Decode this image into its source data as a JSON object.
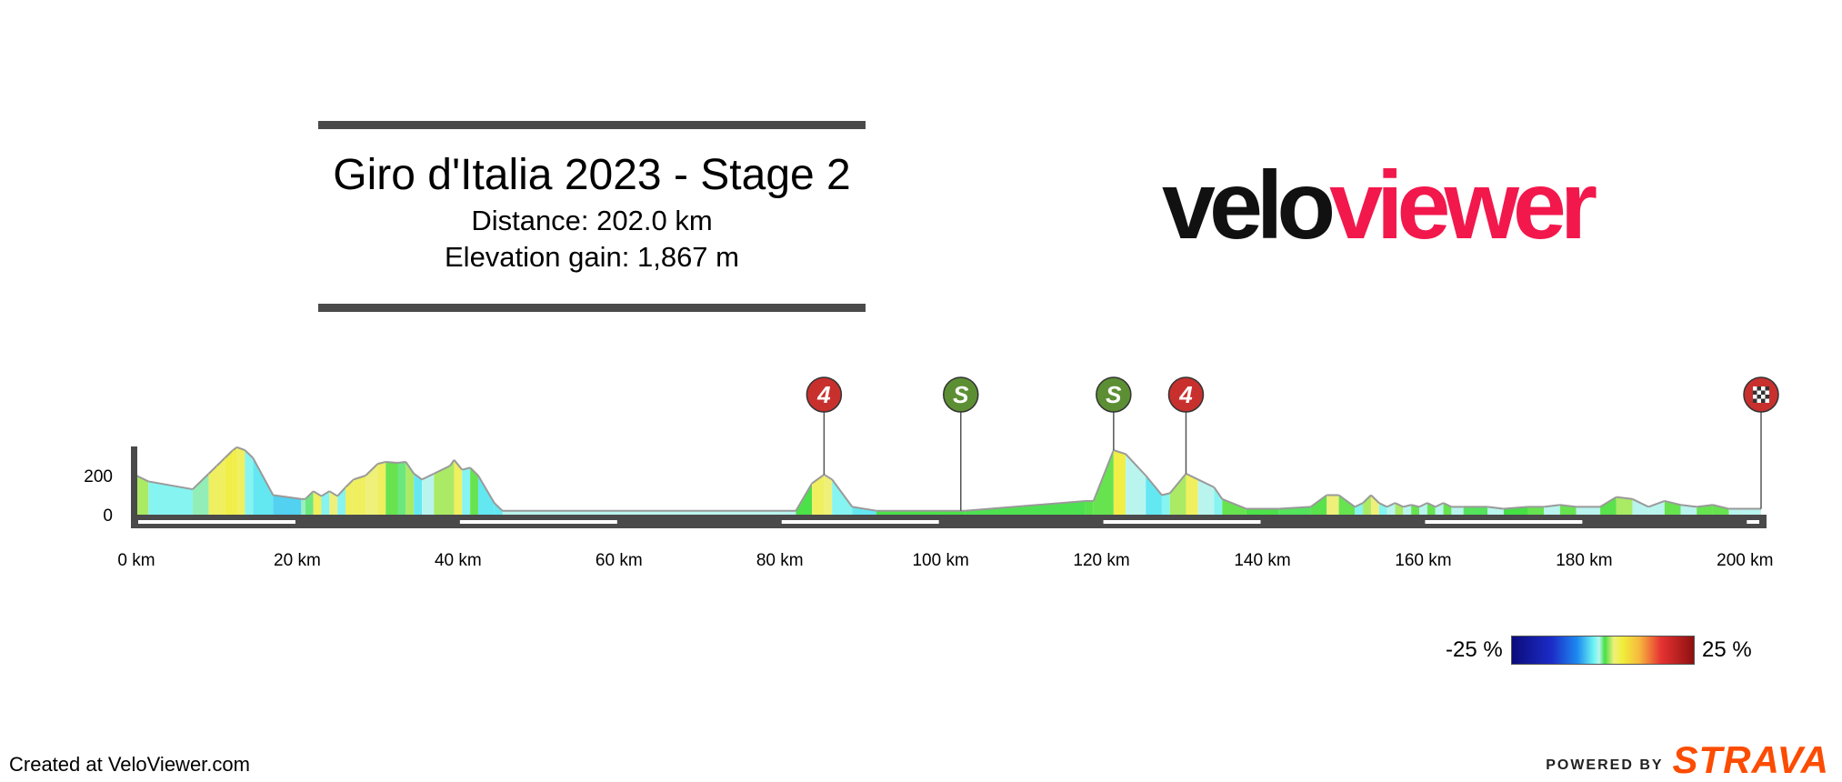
{
  "header": {
    "title": "Giro d'Italia 2023 - Stage 2",
    "distance_label": "Distance: 202.0 km",
    "elevation_label": "Elevation gain: 1,867 m"
  },
  "logo": {
    "part1": "velo",
    "part2": "viewer"
  },
  "chart_data": {
    "type": "area",
    "title": "Giro d'Italia 2023 - Stage 2",
    "xlabel": "",
    "ylabel": "",
    "xlim": [
      0,
      202
    ],
    "ylim": [
      0,
      400
    ],
    "x_unit": "km",
    "x_ticks": [
      0,
      20,
      40,
      60,
      80,
      100,
      120,
      140,
      160,
      180,
      200
    ],
    "y_ticks": [
      0,
      200
    ],
    "grid": false,
    "profile": [
      {
        "km": 0,
        "elev": 200,
        "grad": 2
      },
      {
        "km": 1.5,
        "elev": 170,
        "grad": -2
      },
      {
        "km": 7,
        "elev": 130,
        "grad": -0.5
      },
      {
        "km": 9,
        "elev": 210,
        "grad": 4
      },
      {
        "km": 10,
        "elev": 250,
        "grad": 4
      },
      {
        "km": 11,
        "elev": 290,
        "grad": 5
      },
      {
        "km": 12,
        "elev": 330,
        "grad": 5
      },
      {
        "km": 12.5,
        "elev": 345,
        "grad": 4
      },
      {
        "km": 13.5,
        "elev": 330,
        "grad": -2
      },
      {
        "km": 14.5,
        "elev": 290,
        "grad": -3
      },
      {
        "km": 17,
        "elev": 100,
        "grad": -4
      },
      {
        "km": 20.5,
        "elev": 80,
        "grad": -0.6
      },
      {
        "km": 21,
        "elev": 80,
        "grad": 0
      },
      {
        "km": 22,
        "elev": 120,
        "grad": 4
      },
      {
        "km": 23,
        "elev": 95,
        "grad": -2
      },
      {
        "km": 24,
        "elev": 120,
        "grad": 3
      },
      {
        "km": 25,
        "elev": 95,
        "grad": -2
      },
      {
        "km": 26,
        "elev": 140,
        "grad": 4
      },
      {
        "km": 27,
        "elev": 180,
        "grad": 4
      },
      {
        "km": 28.5,
        "elev": 200,
        "grad": 3
      },
      {
        "km": 30,
        "elev": 260,
        "grad": 4
      },
      {
        "km": 31,
        "elev": 270,
        "grad": 1
      },
      {
        "km": 32.5,
        "elev": 265,
        "grad": 0
      },
      {
        "km": 33.5,
        "elev": 270,
        "grad": 2
      },
      {
        "km": 34.5,
        "elev": 210,
        "grad": -3
      },
      {
        "km": 35.5,
        "elev": 180,
        "grad": -1
      },
      {
        "km": 37,
        "elev": 210,
        "grad": 2
      },
      {
        "km": 39,
        "elev": 250,
        "grad": 2
      },
      {
        "km": 39.5,
        "elev": 280,
        "grad": 4
      },
      {
        "km": 40.5,
        "elev": 230,
        "grad": -2
      },
      {
        "km": 41.5,
        "elev": 240,
        "grad": 1
      },
      {
        "km": 42.5,
        "elev": 200,
        "grad": -3
      },
      {
        "km": 44.5,
        "elev": 60,
        "grad": -3
      },
      {
        "km": 45.5,
        "elev": 20,
        "grad": -1
      },
      {
        "km": 82,
        "elev": 20,
        "grad": 0.6
      },
      {
        "km": 84,
        "elev": 160,
        "grad": 4
      },
      {
        "km": 85.5,
        "elev": 205,
        "grad": 3
      },
      {
        "km": 86.5,
        "elev": 180,
        "grad": -2
      },
      {
        "km": 89,
        "elev": 40,
        "grad": -3
      },
      {
        "km": 92,
        "elev": 20,
        "grad": 0.6
      },
      {
        "km": 103,
        "elev": 20,
        "grad": 0.4
      },
      {
        "km": 118,
        "elev": 70,
        "grad": 0.8
      },
      {
        "km": 119,
        "elev": 70,
        "grad": 1
      },
      {
        "km": 121.5,
        "elev": 330,
        "grad": 5
      },
      {
        "km": 123,
        "elev": 310,
        "grad": -1
      },
      {
        "km": 125.5,
        "elev": 200,
        "grad": -3
      },
      {
        "km": 127.5,
        "elev": 100,
        "grad": -2
      },
      {
        "km": 128.5,
        "elev": 110,
        "grad": 2
      },
      {
        "km": 130.5,
        "elev": 210,
        "grad": 4
      },
      {
        "km": 132,
        "elev": 180,
        "grad": -1
      },
      {
        "km": 134,
        "elev": 140,
        "grad": -2
      },
      {
        "km": 135,
        "elev": 80,
        "grad": 1
      },
      {
        "km": 138,
        "elev": 30,
        "grad": 0.6
      },
      {
        "km": 142,
        "elev": 30,
        "grad": 0.3
      },
      {
        "km": 146,
        "elev": 40,
        "grad": 0.8
      },
      {
        "km": 148,
        "elev": 100,
        "grad": 3
      },
      {
        "km": 149.5,
        "elev": 100,
        "grad": 1
      },
      {
        "km": 151.5,
        "elev": 40,
        "grad": -2
      },
      {
        "km": 152.5,
        "elev": 60,
        "grad": 2
      },
      {
        "km": 153.5,
        "elev": 100,
        "grad": 3
      },
      {
        "km": 154.5,
        "elev": 60,
        "grad": -2
      },
      {
        "km": 155.5,
        "elev": 40,
        "grad": -1
      },
      {
        "km": 156.5,
        "elev": 60,
        "grad": 2
      },
      {
        "km": 157.5,
        "elev": 40,
        "grad": -1
      },
      {
        "km": 158.5,
        "elev": 50,
        "grad": 1
      },
      {
        "km": 159.5,
        "elev": 40,
        "grad": -1
      },
      {
        "km": 160.5,
        "elev": 60,
        "grad": 1
      },
      {
        "km": 161.5,
        "elev": 40,
        "grad": -1
      },
      {
        "km": 162.5,
        "elev": 60,
        "grad": 1
      },
      {
        "km": 163.5,
        "elev": 40,
        "grad": -1
      },
      {
        "km": 165,
        "elev": 40,
        "grad": 0.3
      },
      {
        "km": 168,
        "elev": 40,
        "grad": -1
      },
      {
        "km": 170,
        "elev": 30,
        "grad": 0.5
      },
      {
        "km": 173,
        "elev": 40,
        "grad": 1
      },
      {
        "km": 175,
        "elev": 40,
        "grad": -1
      },
      {
        "km": 177,
        "elev": 50,
        "grad": 1
      },
      {
        "km": 179,
        "elev": 40,
        "grad": -1
      },
      {
        "km": 182,
        "elev": 40,
        "grad": 0.8
      },
      {
        "km": 184,
        "elev": 90,
        "grad": 2
      },
      {
        "km": 186,
        "elev": 80,
        "grad": -1
      },
      {
        "km": 188,
        "elev": 40,
        "grad": -1
      },
      {
        "km": 190,
        "elev": 70,
        "grad": 1
      },
      {
        "km": 192,
        "elev": 50,
        "grad": -1
      },
      {
        "km": 194,
        "elev": 40,
        "grad": 1
      },
      {
        "km": 196,
        "elev": 50,
        "grad": 1
      },
      {
        "km": 198,
        "elev": 30,
        "grad": -1
      },
      {
        "km": 202,
        "elev": 30,
        "grad": 0.5
      }
    ],
    "markers": [
      {
        "km": 85.5,
        "label": "4",
        "type": "kom",
        "color": "#c8302e"
      },
      {
        "km": 102.5,
        "label": "S",
        "type": "sprint",
        "color": "#5c8f34"
      },
      {
        "km": 121.5,
        "label": "S",
        "type": "sprint",
        "color": "#5c8f34"
      },
      {
        "km": 130.5,
        "label": "4",
        "type": "kom",
        "color": "#c8302e"
      },
      {
        "km": 202,
        "label": "",
        "type": "finish",
        "color": "#c8302e"
      }
    ]
  },
  "legend": {
    "min_label": "-25 %",
    "max_label": "25 %",
    "min_value": -25,
    "max_value": 25
  },
  "footer": {
    "created_text": "Created at VeloViewer.com",
    "powered_text": "POWERED BY",
    "strava_text": "STRAVA"
  }
}
